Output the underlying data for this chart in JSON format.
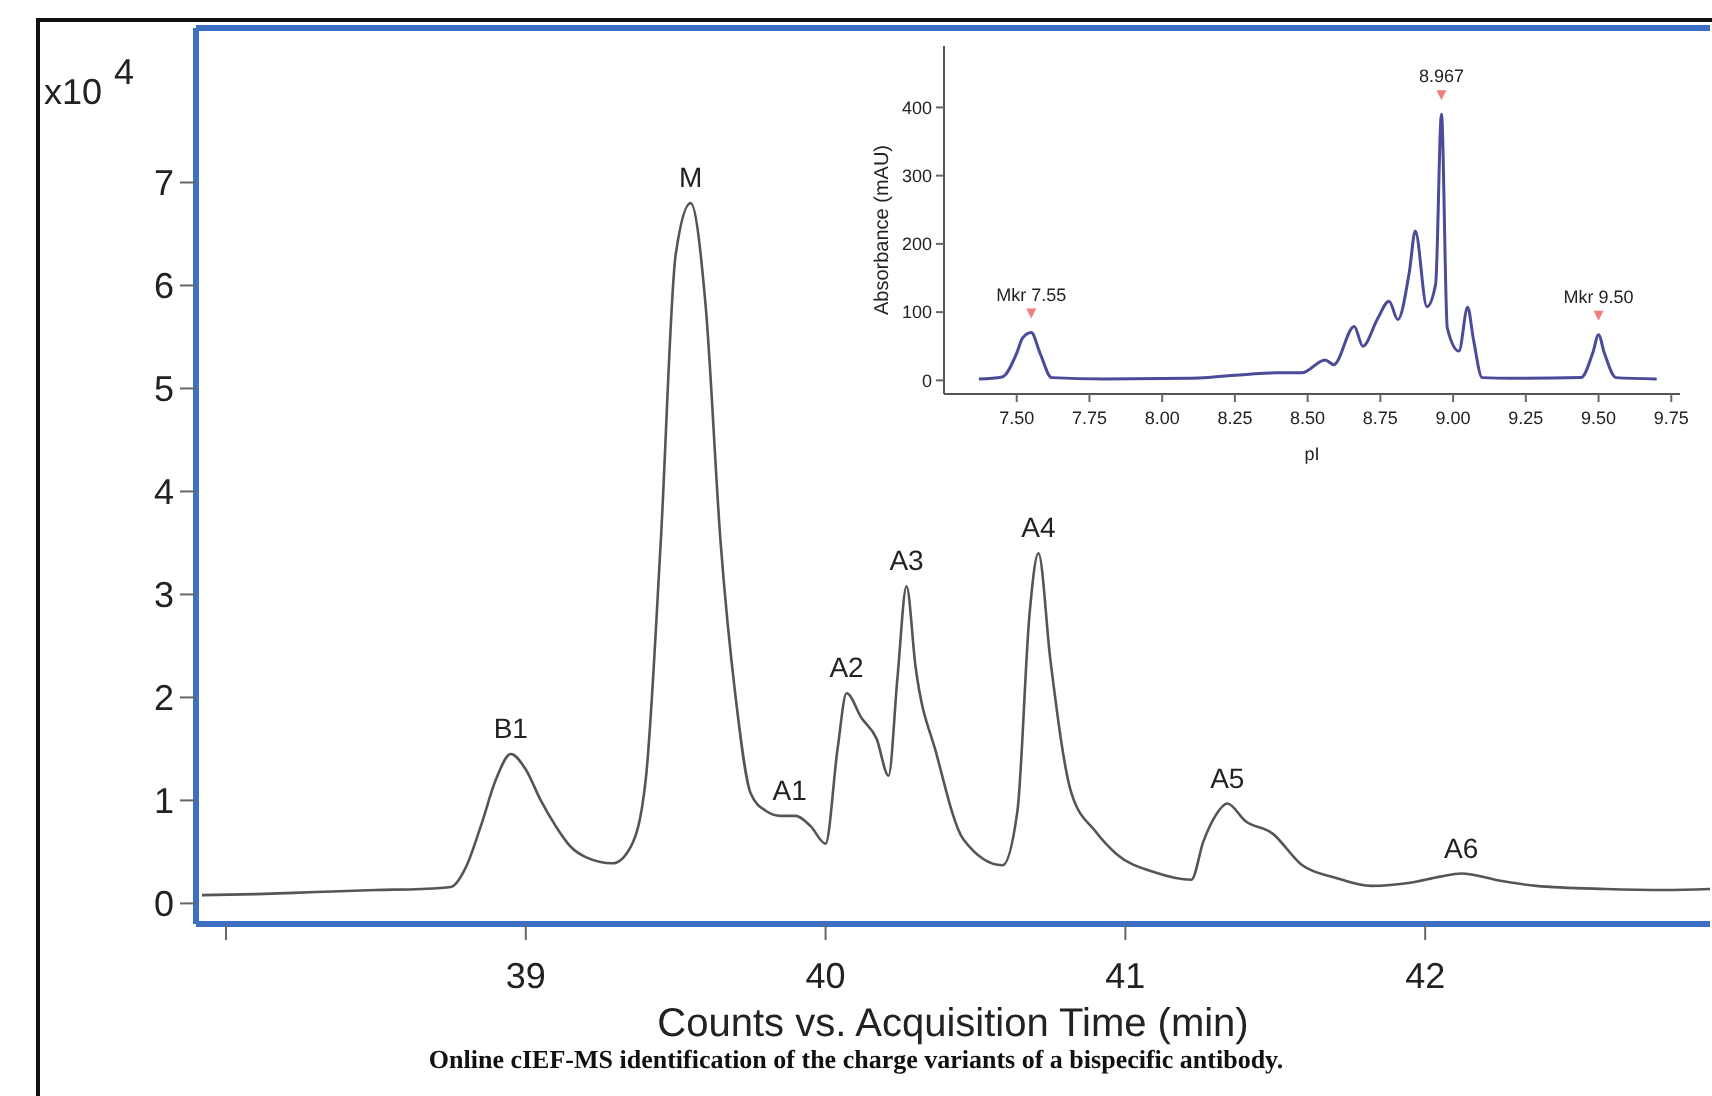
{
  "chart_data": [
    {
      "type": "line",
      "title": "Online cIEF-MS identification of the charge variants of a bispecific antibody.",
      "xlabel": "Counts vs. Acquisition Time (min)",
      "ylabel": "x10$^{4}$",
      "x": [
        37.92,
        38.1,
        38.3,
        38.5,
        38.65,
        38.75,
        38.8,
        38.85,
        38.9,
        38.95,
        39.0,
        39.05,
        39.1,
        39.15,
        39.2,
        39.29,
        39.35,
        39.4,
        39.45,
        39.5,
        39.55,
        39.6,
        39.65,
        39.7,
        39.75,
        39.8,
        39.85,
        39.9,
        39.95,
        40.0,
        40.04,
        40.07,
        40.12,
        40.17,
        40.21,
        40.24,
        40.27,
        40.3,
        40.37,
        40.46,
        40.59,
        40.64,
        40.68,
        40.71,
        40.75,
        40.82,
        40.9,
        40.97,
        41.1,
        41.22,
        41.26,
        41.3,
        41.34,
        41.4,
        41.49,
        41.59,
        41.7,
        41.82,
        41.95,
        42.05,
        42.12,
        42.25,
        42.37,
        42.6,
        42.8,
        42.95
      ],
      "series": [
        {
          "color": "#555555",
          "values": [
            0.08,
            0.09,
            0.11,
            0.13,
            0.14,
            0.16,
            0.35,
            0.75,
            1.2,
            1.45,
            1.3,
            1.0,
            0.75,
            0.55,
            0.45,
            0.39,
            0.55,
            1.2,
            3.5,
            6.3,
            6.8,
            5.8,
            3.5,
            2.0,
            1.07,
            0.9,
            0.85,
            0.85,
            0.75,
            0.58,
            1.5,
            2.04,
            1.8,
            1.6,
            1.24,
            2.2,
            3.08,
            2.3,
            1.45,
            0.62,
            0.37,
            0.9,
            2.8,
            3.4,
            2.36,
            1.07,
            0.7,
            0.48,
            0.3,
            0.23,
            0.6,
            0.85,
            0.97,
            0.8,
            0.68,
            0.37,
            0.25,
            0.17,
            0.2,
            0.26,
            0.29,
            0.22,
            0.17,
            0.14,
            0.13,
            0.14
          ]
        }
      ],
      "xlim": [
        37.9,
        42.95
      ],
      "ylim": [
        -0.2,
        8.5
      ],
      "xticks": [
        {
          "value": 38,
          "label": null
        },
        39,
        40,
        41,
        42
      ],
      "yticks": [
        0,
        1,
        2,
        3,
        4,
        5,
        6,
        7
      ],
      "annotations": [
        {
          "text": "B1",
          "x": 38.95,
          "y": 1.45
        },
        {
          "text": "M",
          "x": 39.55,
          "y": 6.8
        },
        {
          "text": "A1",
          "x": 39.88,
          "y": 0.85
        },
        {
          "text": "A2",
          "x": 40.07,
          "y": 2.04
        },
        {
          "text": "A3",
          "x": 40.27,
          "y": 3.08
        },
        {
          "text": "A4",
          "x": 40.71,
          "y": 3.4
        },
        {
          "text": "A5",
          "x": 41.34,
          "y": 0.97
        },
        {
          "text": "A6",
          "x": 42.12,
          "y": 0.29
        }
      ]
    },
    {
      "type": "line",
      "xlabel": "pI",
      "ylabel": "Absorbance (mAU)",
      "x": [
        7.37,
        7.45,
        7.5,
        7.52,
        7.55,
        7.58,
        7.62,
        7.8,
        8.1,
        8.39,
        8.48,
        8.56,
        8.59,
        8.66,
        8.69,
        8.74,
        8.78,
        8.81,
        8.85,
        8.87,
        8.91,
        8.94,
        8.96,
        8.98,
        9.02,
        9.05,
        9.07,
        9.1,
        9.2,
        9.44,
        9.48,
        9.5,
        9.52,
        9.56,
        9.7
      ],
      "series": [
        {
          "color": "#4b4b9a",
          "values": [
            2,
            5,
            40,
            62,
            70,
            40,
            4,
            2,
            3,
            11,
            11,
            30,
            23,
            79,
            50,
            90,
            116,
            89,
            160,
            219,
            108,
            141,
            390,
            77,
            43,
            107,
            60,
            4,
            3,
            4,
            40,
            67,
            40,
            4,
            2
          ]
        }
      ],
      "xlim": [
        7.25,
        9.78
      ],
      "ylim": [
        -20,
        490
      ],
      "xticks": [
        {
          "value": 7.5,
          "label": "7.50"
        },
        7.75,
        {
          "value": 8,
          "label": "8.00"
        },
        8.25,
        {
          "value": 8.5,
          "label": "8.50"
        },
        8.75,
        {
          "value": 9,
          "label": "9.00"
        },
        9.25,
        {
          "value": 9.5,
          "label": "9.50"
        },
        9.75
      ],
      "yticks": [
        0,
        100,
        200,
        300,
        400
      ],
      "annotations": [
        {
          "text": "Mkr 7.55",
          "x": 7.55,
          "y": 70
        },
        {
          "text": "8.967",
          "x": 8.96,
          "y": 390
        },
        {
          "text": "Mkr 9.50",
          "x": 9.5,
          "y": 67
        }
      ]
    }
  ]
}
